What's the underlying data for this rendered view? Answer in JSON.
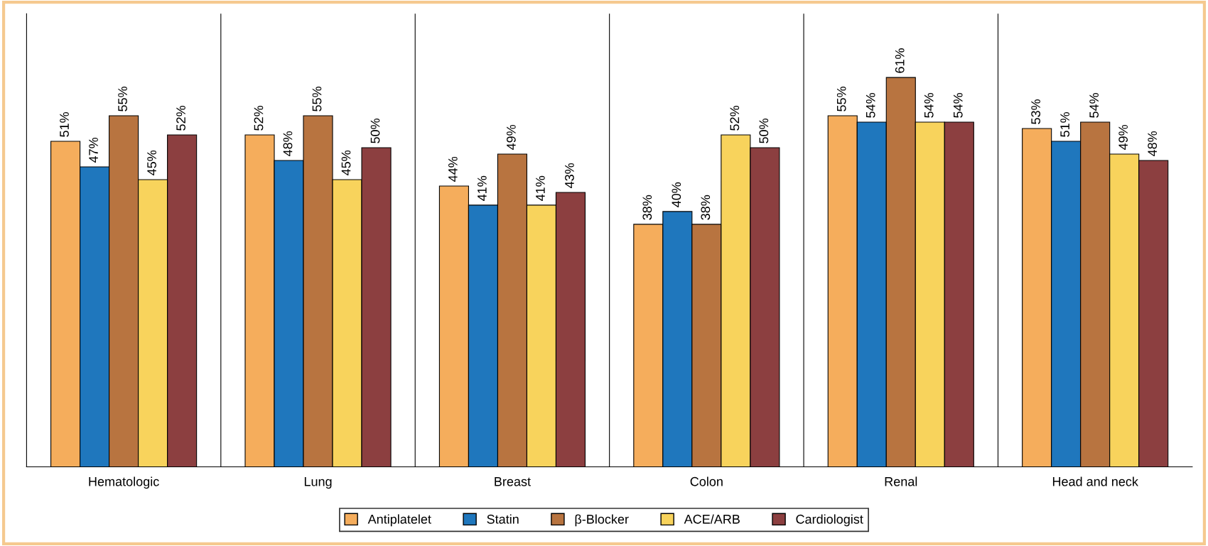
{
  "chart_data": {
    "type": "bar",
    "categories": [
      "Hematologic",
      "Lung",
      "Breast",
      "Colon",
      "Renal",
      "Head and neck"
    ],
    "series": [
      {
        "name": "Antiplatelet",
        "color": "#f5ad5c",
        "values": [
          51,
          52,
          44,
          38,
          55,
          53
        ],
        "value_labels": [
          "51%",
          "52%",
          "44%",
          "38%",
          "55%",
          "53%"
        ]
      },
      {
        "name": "Statin",
        "color": "#1f77bd",
        "values": [
          47,
          48,
          41,
          40,
          54,
          51
        ],
        "value_labels": [
          "47%",
          "48%",
          "41%",
          "40%",
          "54%",
          "51%"
        ]
      },
      {
        "name": "β-Blocker",
        "color": "#b87440",
        "values": [
          55,
          55,
          49,
          38,
          61,
          54
        ],
        "value_labels": [
          "55%",
          "55%",
          "49%",
          "38%",
          "61%",
          "54%"
        ]
      },
      {
        "name": "ACE/ARB",
        "color": "#f8d35c",
        "values": [
          45,
          45,
          41,
          52,
          54,
          49
        ],
        "value_labels": [
          "45%",
          "45%",
          "41%",
          "52%",
          "54%",
          "49%"
        ]
      },
      {
        "name": "Cardiologist",
        "color": "#8c3f40",
        "values": [
          52,
          50,
          43,
          50,
          54,
          48
        ],
        "value_labels": [
          "52%",
          "50%",
          "43%",
          "50%",
          "54%",
          "48%"
        ]
      }
    ],
    "ylim": [
      0,
      71
    ],
    "tick_labels": "x",
    "grid": false,
    "legend": "bottom"
  }
}
